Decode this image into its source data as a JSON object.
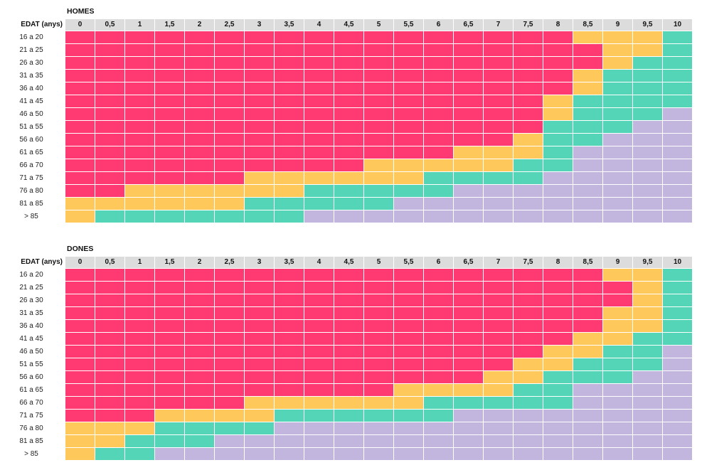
{
  "colors": {
    "red": "#ff3a72",
    "yellow": "#ffc85a",
    "green": "#55d5b8",
    "purple": "#c2b5de",
    "header_bg": "#dcdcdc"
  },
  "chart_data": [
    {
      "type": "heatmap",
      "title": "HOMES",
      "row_header": "EDAT (anys)",
      "columns": [
        "0",
        "0,5",
        "1",
        "1,5",
        "2",
        "2,5",
        "3",
        "3,5",
        "4",
        "4,5",
        "5",
        "5,5",
        "6",
        "6,5",
        "7",
        "7,5",
        "8",
        "8,5",
        "9",
        "9,5",
        "10"
      ],
      "rows": [
        "16 a 20",
        "21 a 25",
        "26 a 30",
        "31 a 35",
        "36 a 40",
        "41 a 45",
        "46 a 50",
        "51 a 55",
        "56 a 60",
        "61 a 65",
        "66 a 70",
        "71 a 75",
        "76 a 80",
        "81 a 85",
        "> 85"
      ],
      "encoding": "R=red, Y=yellow, G=green, P=purple",
      "cells": [
        "RRRRRRRRRRRRRRRRRYYYG",
        "RRRRRRRRRRRRRRRRRRYYG",
        "RRRRRRRRRRRRRRRRRRYGG",
        "RRRRRRRRRRRRRRRRRYGGG",
        "RRRRRRRRRRRRRRRRRYGGG",
        "RRRRRRRRRRRRRRRRYGGGG",
        "RRRRRRRRRRRRRRRRYGGGP",
        "RRRRRRRRRRRRRRRRGGGPP",
        "RRRRRRRRRRRRRRRYGGPPP",
        "RRRRRRRRRRRRRYYYGPPPP",
        "RRRRRRRRRRYYYYYGGPPPP",
        "RRRRRRYYYYYYGGGGPPPPP",
        "RRYYYYYYGGGGGPPPPPPPP",
        "YYYYYYGGGGGPPPPPPPPPP",
        "YGGGGGGGPPPPPPPPPPPPP"
      ]
    },
    {
      "type": "heatmap",
      "title": "DONES",
      "row_header": "EDAT (anys)",
      "columns": [
        "0",
        "0,5",
        "1",
        "1,5",
        "2",
        "2,5",
        "3",
        "3,5",
        "4",
        "4,5",
        "5",
        "5,5",
        "6",
        "6,5",
        "7",
        "7,5",
        "8",
        "8,5",
        "9",
        "9,5",
        "10"
      ],
      "rows": [
        "16 a 20",
        "21 a 25",
        "26 a 30",
        "31 a 35",
        "36 a 40",
        "41 a 45",
        "46 a 50",
        "51 a 55",
        "56 a 60",
        "61 a 65",
        "66 a 70",
        "71 a 75",
        "76 a 80",
        "81 a 85",
        "> 85"
      ],
      "encoding": "R=red, Y=yellow, G=green, P=purple",
      "cells": [
        "RRRRRRRRRRRRRRRRRRYYG",
        "RRRRRRRRRRRRRRRRRRRYG",
        "RRRRRRRRRRRRRRRRRRRYG",
        "RRRRRRRRRRRRRRRRRRYYG",
        "RRRRRRRRRRRRRRRRRRYYG",
        "RRRRRRRRRRRRRRRRRYYGG",
        "RRRRRRRRRRRRRRRRYYGGP",
        "RRRRRRRRRRRRRRRYYGGGP",
        "RRRRRRRRRRRRRRYYGGGPP",
        "RRRRRRRRRRRYYYYGGPPPP",
        "RRRRRRYYYYYYGGGGGPPPP",
        "RRRYYYYGGGGGGPPPPPPPP",
        "YYYGGGGPPPPPPPPPPPPPP",
        "YYGGGPPPPPPPPPPPPPPPP",
        "YGGPPPPPPPPPPPPPPPPPP"
      ]
    }
  ]
}
